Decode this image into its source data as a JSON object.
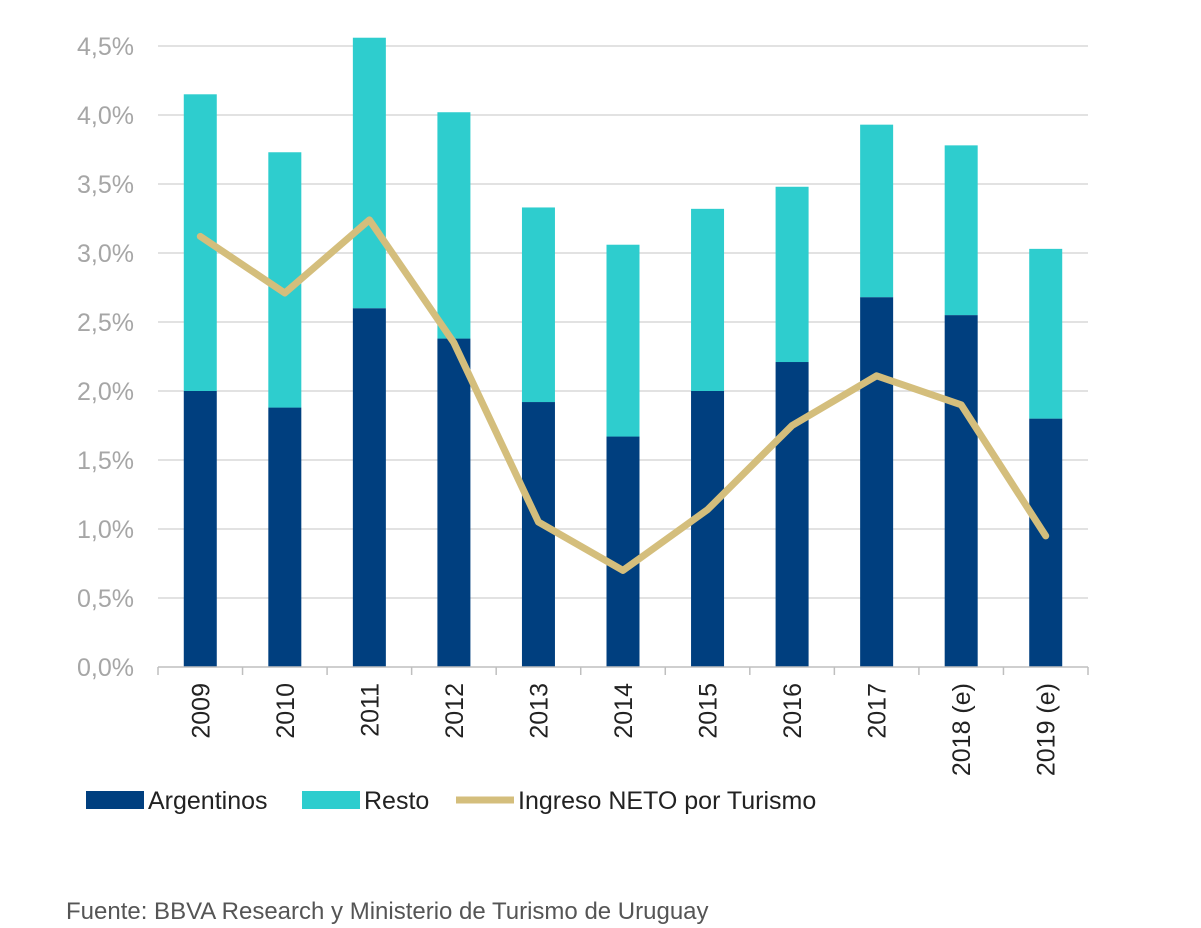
{
  "chart_data": {
    "type": "bar",
    "stacked": true,
    "categories": [
      "2009",
      "2010",
      "2011",
      "2012",
      "2013",
      "2014",
      "2015",
      "2016",
      "2017",
      "2018 (e)",
      "2019 (e)"
    ],
    "series": [
      {
        "name": "Argentinos",
        "kind": "bar",
        "color": "#003f7f",
        "values": [
          2.0,
          1.88,
          2.6,
          2.38,
          1.92,
          1.67,
          2.0,
          2.21,
          2.68,
          2.55,
          1.8
        ]
      },
      {
        "name": "Resto",
        "kind": "bar",
        "color": "#2ecdce",
        "values": [
          2.15,
          1.85,
          1.96,
          1.64,
          1.41,
          1.39,
          1.32,
          1.27,
          1.25,
          1.23,
          1.23
        ]
      },
      {
        "name": "Ingreso NETO por Turismo",
        "kind": "line",
        "color": "#d4be7c",
        "values": [
          3.12,
          2.71,
          3.24,
          2.35,
          1.05,
          0.7,
          1.14,
          1.75,
          2.11,
          1.9,
          0.95
        ]
      }
    ],
    "yticks": [
      "0,0%",
      "0,5%",
      "1,0%",
      "1,5%",
      "2,0%",
      "2,5%",
      "3,0%",
      "3,5%",
      "4,0%",
      "4,5%"
    ],
    "ylim": [
      0,
      4.5
    ],
    "grid": true,
    "legend": "bottom"
  },
  "source": "Fuente: BBVA Research y Ministerio de Turismo de Uruguay"
}
